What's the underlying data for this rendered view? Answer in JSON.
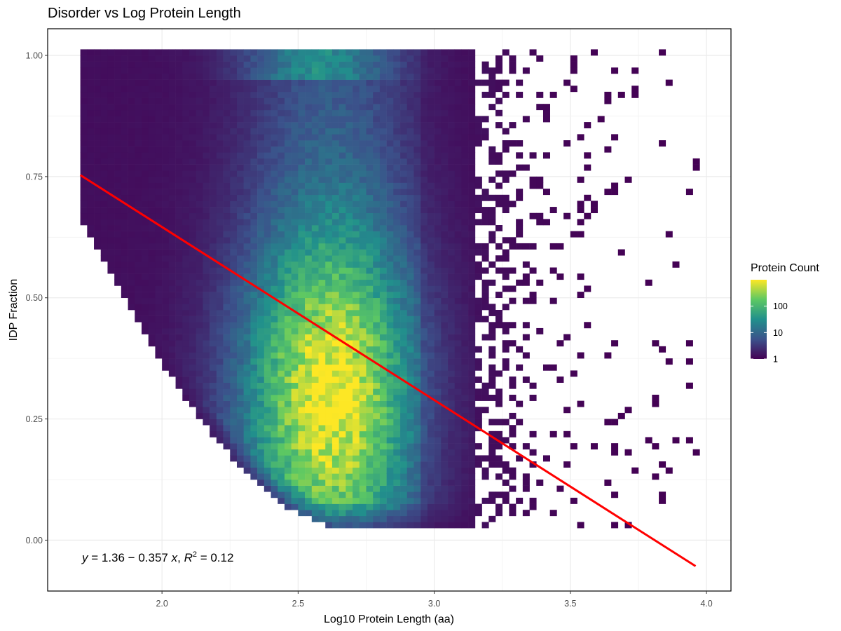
{
  "chart_data": {
    "type": "heatmap",
    "title": "Disorder vs Log Protein Length",
    "xlabel": "Log10 Protein Length (aa)",
    "ylabel": "IDP Fraction",
    "xlim": [
      1.58,
      4.09
    ],
    "ylim": [
      -0.105,
      1.055
    ],
    "x_ticks": [
      "2.0",
      "2.5",
      "3.0",
      "3.5",
      "4.0"
    ],
    "x_tick_values": [
      2.0,
      2.5,
      3.0,
      3.5,
      4.0
    ],
    "y_ticks": [
      "0.00",
      "0.25",
      "0.50",
      "0.75",
      "1.00"
    ],
    "y_tick_values": [
      0.0,
      0.25,
      0.5,
      0.75,
      1.0
    ],
    "grid": true,
    "bin_width_x": 0.025,
    "bin_width_y": 0.0125,
    "density_description": "2D histogram of protein counts; dense core (100+) between log length 2.3 and 3.0 at IDP fraction 0.05–0.7, sparse counts (1) beyond log length 3.2; lower boundary curves upward at short lengths",
    "legend": {
      "title": "Protein Count",
      "scale": "log",
      "labels": [
        "1",
        "10",
        "100"
      ],
      "label_values": [
        1,
        10,
        100
      ],
      "max_value": 1000,
      "placement": "right",
      "colors": [
        "#440154",
        "#3b528b",
        "#21908c",
        "#5dc863",
        "#fde725"
      ]
    },
    "regression": {
      "intercept": 1.36,
      "slope": -0.357,
      "r2": 0.12,
      "x_range": [
        1.7,
        3.96
      ],
      "color": "#ff0000"
    },
    "annotation": {
      "y": "y",
      "eq": " = 1.36 − 0.357 ",
      "x": "x",
      "sep": ", ",
      "R": "R",
      "sup": "2",
      "rest": " = 0.12"
    }
  }
}
